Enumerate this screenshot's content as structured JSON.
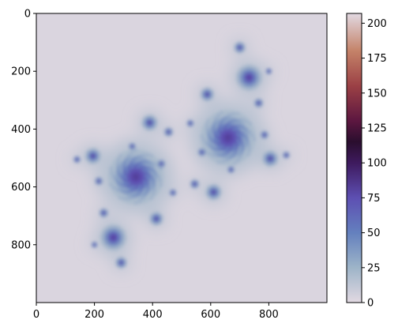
{
  "chart_data": {
    "type": "heatmap",
    "title": "",
    "xlabel": "",
    "ylabel": "",
    "image_extent": {
      "x": [
        0,
        1000
      ],
      "y": [
        0,
        1000
      ]
    },
    "x_ticks": [
      0,
      200,
      400,
      600,
      800
    ],
    "y_ticks": [
      0,
      200,
      400,
      600,
      800
    ],
    "y_axis_inverted": true,
    "grid": false,
    "colorbar": {
      "colormap": "twilight",
      "range": [
        0,
        207
      ],
      "ticks": [
        0,
        25,
        50,
        75,
        100,
        125,
        150,
        175,
        200
      ],
      "stops": [
        {
          "value": 0,
          "color": "#e2d9e2"
        },
        {
          "value": 25,
          "color": "#9db4c8"
        },
        {
          "value": 50,
          "color": "#6480be"
        },
        {
          "value": 75,
          "color": "#5d4fb2"
        },
        {
          "value": 100,
          "color": "#3e1a5e"
        },
        {
          "value": 115,
          "color": "#2a0e2e"
        },
        {
          "value": 130,
          "color": "#5c1740"
        },
        {
          "value": 155,
          "color": "#9b4045"
        },
        {
          "value": 180,
          "color": "#c48268"
        },
        {
          "value": 207,
          "color": "#e2d9e2"
        }
      ]
    },
    "background_value": 3,
    "halo_value": 18,
    "spirals": [
      {
        "cx": 343,
        "cy": 565,
        "r": 95,
        "center_value": 108
      },
      {
        "cx": 660,
        "cy": 430,
        "r": 95,
        "center_value": 108
      },
      {
        "cx": 732,
        "cy": 222,
        "r": 45,
        "center_value": 100
      },
      {
        "cx": 265,
        "cy": 775,
        "r": 45,
        "center_value": 100
      },
      {
        "cx": 390,
        "cy": 378,
        "r": 28,
        "center_value": 85
      },
      {
        "cx": 610,
        "cy": 618,
        "r": 28,
        "center_value": 85
      },
      {
        "cx": 195,
        "cy": 493,
        "r": 28,
        "center_value": 85
      },
      {
        "cx": 805,
        "cy": 502,
        "r": 28,
        "center_value": 85
      },
      {
        "cx": 413,
        "cy": 710,
        "r": 24,
        "center_value": 80
      },
      {
        "cx": 588,
        "cy": 280,
        "r": 24,
        "center_value": 80
      },
      {
        "cx": 292,
        "cy": 862,
        "r": 20,
        "center_value": 75
      },
      {
        "cx": 700,
        "cy": 118,
        "r": 20,
        "center_value": 75
      },
      {
        "cx": 232,
        "cy": 690,
        "r": 16,
        "center_value": 70
      },
      {
        "cx": 765,
        "cy": 310,
        "r": 16,
        "center_value": 70
      },
      {
        "cx": 455,
        "cy": 410,
        "r": 16,
        "center_value": 70
      },
      {
        "cx": 545,
        "cy": 590,
        "r": 16,
        "center_value": 70
      },
      {
        "cx": 140,
        "cy": 505,
        "r": 12,
        "center_value": 65
      },
      {
        "cx": 860,
        "cy": 490,
        "r": 12,
        "center_value": 65
      },
      {
        "cx": 215,
        "cy": 580,
        "r": 14,
        "center_value": 65
      },
      {
        "cx": 785,
        "cy": 420,
        "r": 14,
        "center_value": 65
      },
      {
        "cx": 470,
        "cy": 620,
        "r": 12,
        "center_value": 60
      },
      {
        "cx": 530,
        "cy": 380,
        "r": 12,
        "center_value": 60
      },
      {
        "cx": 330,
        "cy": 460,
        "r": 12,
        "center_value": 60
      },
      {
        "cx": 670,
        "cy": 540,
        "r": 12,
        "center_value": 60
      },
      {
        "cx": 200,
        "cy": 800,
        "r": 10,
        "center_value": 55
      },
      {
        "cx": 800,
        "cy": 200,
        "r": 10,
        "center_value": 55
      },
      {
        "cx": 430,
        "cy": 520,
        "r": 14,
        "center_value": 60
      },
      {
        "cx": 570,
        "cy": 480,
        "r": 14,
        "center_value": 60
      }
    ]
  }
}
